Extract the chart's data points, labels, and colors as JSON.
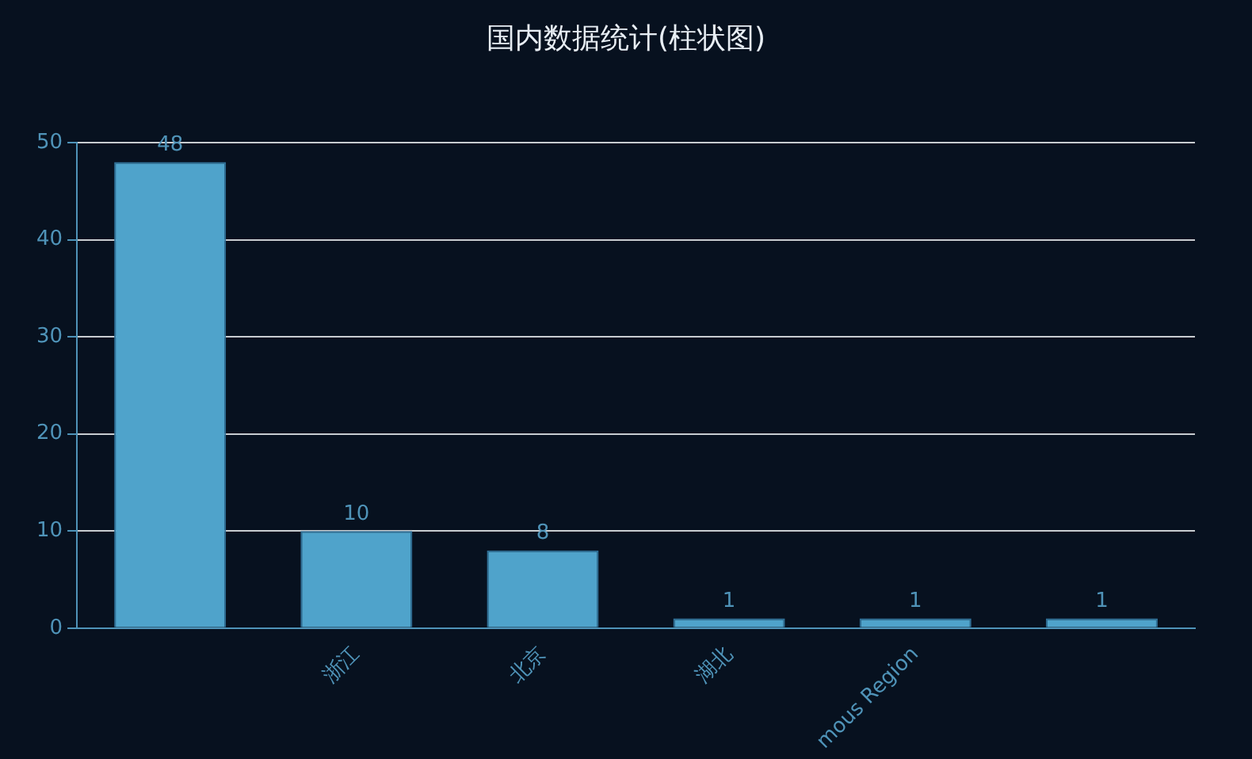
{
  "chart_data": {
    "type": "bar",
    "title": "国内数据统计(柱状图)",
    "categories": [
      null,
      "浙江",
      "北京",
      "湖北",
      "mous Region",
      null
    ],
    "values": [
      48,
      10,
      8,
      1,
      1,
      1
    ],
    "color": "#4fa3cb",
    "ylim": [
      0,
      50
    ],
    "yticks": [
      0,
      10,
      20,
      30,
      40,
      50
    ],
    "grid": "y",
    "data_labels": true
  }
}
